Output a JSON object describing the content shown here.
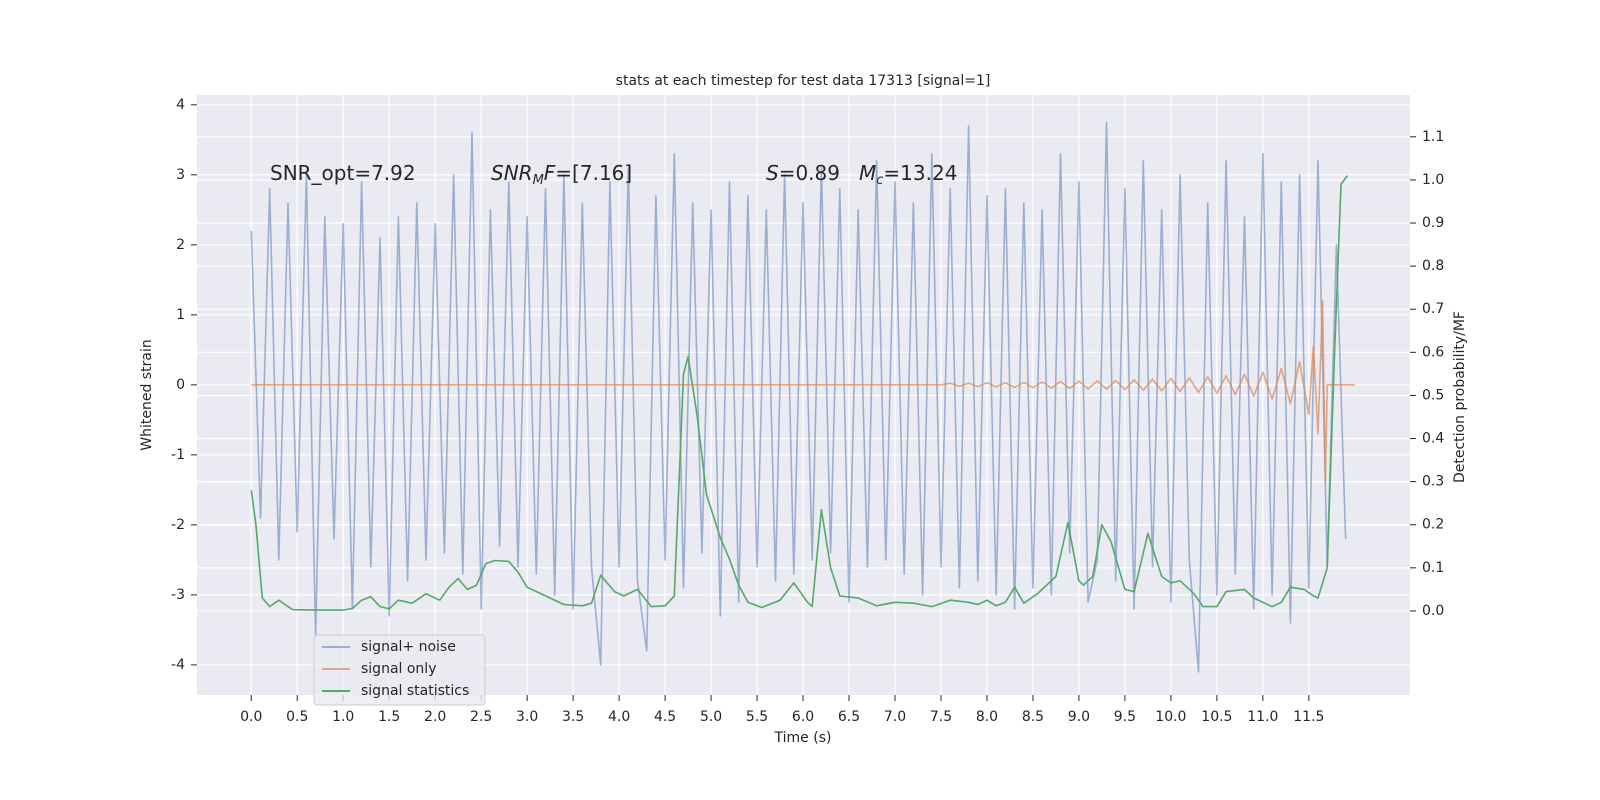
{
  "chart_data": {
    "type": "line",
    "title": "stats at each timestep for test data 17313 [signal=1]",
    "xlabel": "Time (s)",
    "ylabel": "Whitened strain",
    "y2label": "Detection probability/MF",
    "xlim": [
      -0.59,
      12.6
    ],
    "ylim": [
      -4.43,
      4.14
    ],
    "y2lim": [
      -0.195,
      1.197
    ],
    "xticks": [
      {
        "value": 0,
        "label": "0.0"
      },
      0.5,
      {
        "value": 1,
        "label": "1.0"
      },
      1.5,
      {
        "value": 2,
        "label": "2.0"
      },
      2.5,
      {
        "value": 3,
        "label": "3.0"
      },
      3.5,
      {
        "value": 4,
        "label": "4.0"
      },
      4.5,
      {
        "value": 5,
        "label": "5.0"
      },
      5.5,
      {
        "value": 6,
        "label": "6.0"
      },
      6.5,
      {
        "value": 7,
        "label": "7.0"
      },
      7.5,
      {
        "value": 8,
        "label": "8.0"
      },
      8.5,
      {
        "value": 9,
        "label": "9.0"
      },
      9.5,
      {
        "value": 10,
        "label": "10.0"
      },
      10.5,
      {
        "value": 11,
        "label": "11.0"
      },
      11.5
    ],
    "yticks": [
      -4,
      -3,
      -2,
      -1,
      0,
      1,
      2,
      3,
      4
    ],
    "y2ticks": [
      {
        "value": 0,
        "label": "0.0"
      },
      0.1,
      0.2,
      0.3,
      0.4,
      0.5,
      0.6,
      0.7,
      0.8,
      0.9,
      {
        "value": 1,
        "label": "1.0"
      },
      1.1
    ],
    "grid": true,
    "legend": "lower left",
    "annotations": [
      {
        "parts": [
          "SNR_opt=7.92"
        ]
      },
      {
        "parts": [
          "SNR",
          "M",
          "F=[7.16]"
        ]
      },
      {
        "parts": [
          "S",
          "=0.89"
        ]
      },
      {
        "parts": [
          "M",
          "c",
          "=13.24"
        ]
      }
    ],
    "series": [
      {
        "name": "signal+ noise",
        "color": "#4c72b0",
        "opacity": 0.5,
        "x": [
          0,
          0.1,
          0.2,
          0.3,
          0.4,
          0.5,
          0.6,
          0.7,
          0.8,
          0.9,
          1,
          1.1,
          1.2,
          1.3,
          1.4,
          1.5,
          1.6,
          1.7,
          1.8,
          1.9,
          2,
          2.1,
          2.2,
          2.3,
          2.4,
          2.5,
          2.6,
          2.7,
          2.8,
          2.9,
          3,
          3.1,
          3.2,
          3.3,
          3.4,
          3.5,
          3.6,
          3.7,
          3.8,
          3.9,
          4,
          4.1,
          4.2,
          4.3,
          4.4,
          4.5,
          4.6,
          4.7,
          4.8,
          4.9,
          5,
          5.1,
          5.2,
          5.3,
          5.4,
          5.5,
          5.6,
          5.7,
          5.8,
          5.9,
          6,
          6.1,
          6.2,
          6.3,
          6.4,
          6.5,
          6.6,
          6.7,
          6.8,
          6.9,
          7,
          7.1,
          7.2,
          7.3,
          7.4,
          7.5,
          7.6,
          7.7,
          7.8,
          7.9,
          8,
          8.1,
          8.2,
          8.3,
          8.4,
          8.5,
          8.6,
          8.7,
          8.8,
          8.9,
          9,
          9.1,
          9.2,
          9.3,
          9.4,
          9.5,
          9.6,
          9.7,
          9.8,
          9.9,
          10,
          10.1,
          10.2,
          10.3,
          10.4,
          10.5,
          10.6,
          10.7,
          10.8,
          10.9,
          11,
          11.1,
          11.2,
          11.3,
          11.4,
          11.5,
          11.6,
          11.7,
          11.8,
          11.9
        ],
        "values": [
          2.2,
          -1.9,
          2.8,
          -2.5,
          2.6,
          -2.1,
          3.0,
          -3.6,
          2.4,
          -2.2,
          2.3,
          -3.2,
          2.9,
          -2.6,
          2.1,
          -3.3,
          2.4,
          -2.8,
          2.6,
          -2.5,
          2.3,
          -2.4,
          3.0,
          -2.7,
          3.6,
          -3.2,
          2.5,
          -2.3,
          2.9,
          -2.6,
          2.4,
          -2.7,
          2.8,
          -3.0,
          3.0,
          -3.2,
          2.6,
          -2.6,
          -4.0,
          2.9,
          -2.6,
          3.1,
          -2.8,
          -3.8,
          2.7,
          -2.5,
          3.3,
          -2.9,
          2.6,
          -2.4,
          2.5,
          -3.3,
          2.9,
          -3.1,
          2.7,
          -2.6,
          2.5,
          -2.8,
          3.0,
          -2.7,
          2.6,
          -2.5,
          3.1,
          -2.4,
          2.8,
          -3.1,
          2.5,
          -2.6,
          3.2,
          -2.5,
          2.9,
          -2.7,
          2.6,
          -3.0,
          3.3,
          -2.6,
          2.8,
          -2.9,
          3.7,
          -2.8,
          2.7,
          -3.0,
          2.8,
          -3.2,
          2.6,
          -2.9,
          2.5,
          -3.0,
          3.3,
          -2.4,
          2.9,
          -3.1,
          -2.5,
          3.75,
          -2.8,
          2.8,
          -3.2,
          3.2,
          -2.6,
          2.5,
          -3.1,
          3.0,
          -2.5,
          -4.1,
          2.6,
          -3.0,
          3.2,
          -2.7,
          2.4,
          -3.2,
          3.3,
          -3.0,
          2.9,
          -3.4,
          3.0,
          -2.9,
          3.2,
          -2.6,
          2.0,
          -2.2
        ]
      },
      {
        "name": "signal only",
        "color": "#dd8452",
        "opacity": 0.7,
        "x": [
          0,
          7.5,
          7.6,
          7.7,
          7.8,
          7.9,
          8,
          8.1,
          8.2,
          8.3,
          8.4,
          8.5,
          8.6,
          8.7,
          8.8,
          8.9,
          9,
          9.1,
          9.2,
          9.3,
          9.4,
          9.5,
          9.6,
          9.7,
          9.8,
          9.9,
          10,
          10.1,
          10.2,
          10.3,
          10.4,
          10.5,
          10.6,
          10.7,
          10.8,
          10.9,
          11,
          11.1,
          11.2,
          11.3,
          11.4,
          11.5,
          11.55,
          11.6,
          11.65,
          11.68,
          11.7,
          12
        ],
        "values": [
          0,
          0,
          0.02,
          -0.02,
          0.025,
          -0.025,
          0.03,
          -0.03,
          0.03,
          -0.035,
          0.035,
          -0.04,
          0.04,
          -0.045,
          0.045,
          -0.05,
          0.05,
          -0.055,
          0.055,
          -0.06,
          0.06,
          -0.065,
          0.07,
          -0.075,
          0.08,
          -0.085,
          0.09,
          -0.095,
          0.1,
          -0.11,
          0.115,
          -0.12,
          0.13,
          -0.14,
          0.15,
          -0.16,
          0.18,
          -0.2,
          0.23,
          -0.27,
          0.33,
          -0.42,
          0.55,
          -0.7,
          1.2,
          -1.4,
          0,
          0
        ]
      },
      {
        "name": "signal statistics",
        "color": "#55a868",
        "opacity": 1,
        "axis": "y2",
        "x": [
          0,
          0.05,
          0.12,
          0.2,
          0.3,
          0.45,
          0.7,
          1,
          1.1,
          1.2,
          1.3,
          1.4,
          1.5,
          1.6,
          1.75,
          1.9,
          2.05,
          2.15,
          2.25,
          2.35,
          2.45,
          2.55,
          2.65,
          2.8,
          2.9,
          3,
          3.2,
          3.4,
          3.6,
          3.7,
          3.8,
          3.95,
          4.05,
          4.2,
          4.35,
          4.5,
          4.6,
          4.7,
          4.75,
          4.85,
          4.95,
          5.1,
          5.2,
          5.3,
          5.4,
          5.55,
          5.75,
          5.9,
          6.05,
          6.1,
          6.2,
          6.3,
          6.4,
          6.6,
          6.8,
          7,
          7.2,
          7.4,
          7.6,
          7.8,
          7.9,
          8,
          8.1,
          8.2,
          8.3,
          8.4,
          8.55,
          8.75,
          8.88,
          9,
          9.05,
          9.15,
          9.25,
          9.35,
          9.5,
          9.6,
          9.75,
          9.9,
          10,
          10.1,
          10.25,
          10.35,
          10.5,
          10.6,
          10.8,
          10.9,
          11,
          11.1,
          11.2,
          11.3,
          11.45,
          11.55,
          11.6,
          11.7,
          11.78,
          11.85,
          11.92
        ],
        "values": [
          0.28,
          0.2,
          0.03,
          0.01,
          0.025,
          0.003,
          0.002,
          0.002,
          0.006,
          0.025,
          0.033,
          0.01,
          0.005,
          0.025,
          0.018,
          0.04,
          0.025,
          0.055,
          0.075,
          0.05,
          0.06,
          0.11,
          0.117,
          0.115,
          0.09,
          0.055,
          0.035,
          0.015,
          0.012,
          0.018,
          0.083,
          0.045,
          0.035,
          0.05,
          0.01,
          0.012,
          0.035,
          0.55,
          0.59,
          0.45,
          0.27,
          0.17,
          0.12,
          0.06,
          0.02,
          0.008,
          0.025,
          0.065,
          0.02,
          0.01,
          0.235,
          0.1,
          0.035,
          0.03,
          0.012,
          0.02,
          0.018,
          0.01,
          0.025,
          0.02,
          0.015,
          0.025,
          0.012,
          0.02,
          0.055,
          0.018,
          0.04,
          0.08,
          0.205,
          0.07,
          0.06,
          0.08,
          0.2,
          0.16,
          0.05,
          0.045,
          0.18,
          0.08,
          0.065,
          0.07,
          0.04,
          0.01,
          0.01,
          0.045,
          0.05,
          0.03,
          0.02,
          0.01,
          0.02,
          0.055,
          0.05,
          0.035,
          0.03,
          0.1,
          0.6,
          0.99,
          1.01
        ]
      }
    ]
  }
}
